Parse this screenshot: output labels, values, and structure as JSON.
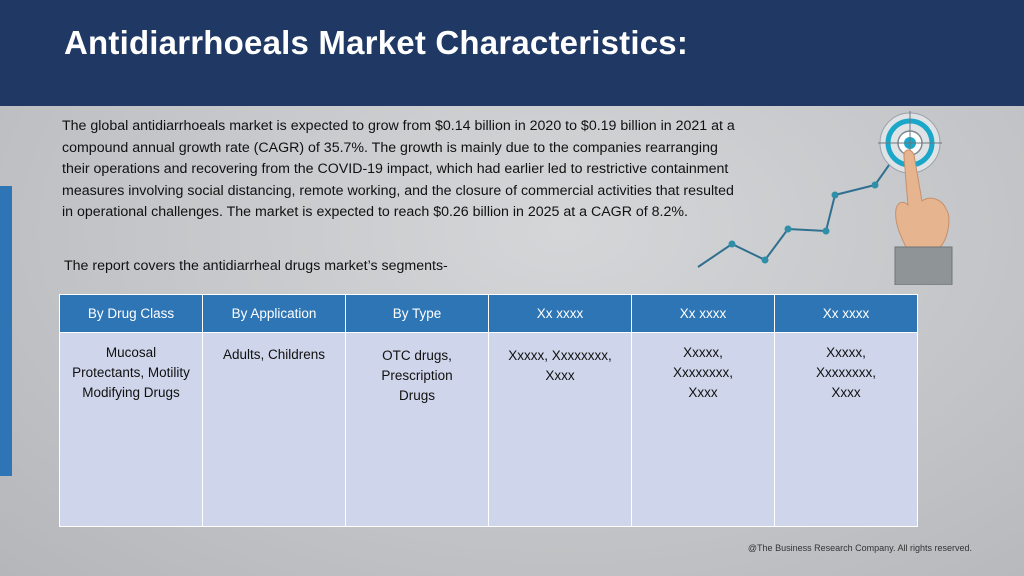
{
  "header": {
    "title": "Antidiarrhoeals Market Characteristics:"
  },
  "intro": {
    "paragraph": "The global antidiarrhoeals market is expected to grow from $0.14 billion in 2020 to $0.19 billion in 2021 at a compound annual growth rate (CAGR) of 35.7%. The growth is mainly due to the companies rearranging their operations and recovering from the COVID-19 impact, which had earlier led to restrictive containment measures involving social distancing, remote working, and the closure of commercial activities that resulted in operational challenges. The market is expected to reach $0.26 billion in 2025 at a CAGR of 8.2%.",
    "segments_intro": "The report covers the antidiarrheal drugs market’s segments-"
  },
  "table": {
    "headers": [
      "By Drug Class",
      "By Application",
      "By Type",
      "Xx xxxx",
      "Xx xxxx",
      "Xx xxxx"
    ],
    "cells": [
      "Mucosal Protectants, Motility Modifying Drugs",
      "Adults, Childrens",
      "OTC drugs, Prescription Drugs",
      "Xxxxx, Xxxxxxxx, Xxxx",
      "Xxxxx, Xxxxxxxx, Xxxx",
      "Xxxxx, Xxxxxxxx, Xxxx"
    ]
  },
  "footer": {
    "copyright": "@The Business Research Company. All rights reserved."
  },
  "graphic": {
    "icon": "hand-touching-target-with-growth-line",
    "line_color": "#2f6f8f",
    "target_color": "#1aa7c9"
  }
}
